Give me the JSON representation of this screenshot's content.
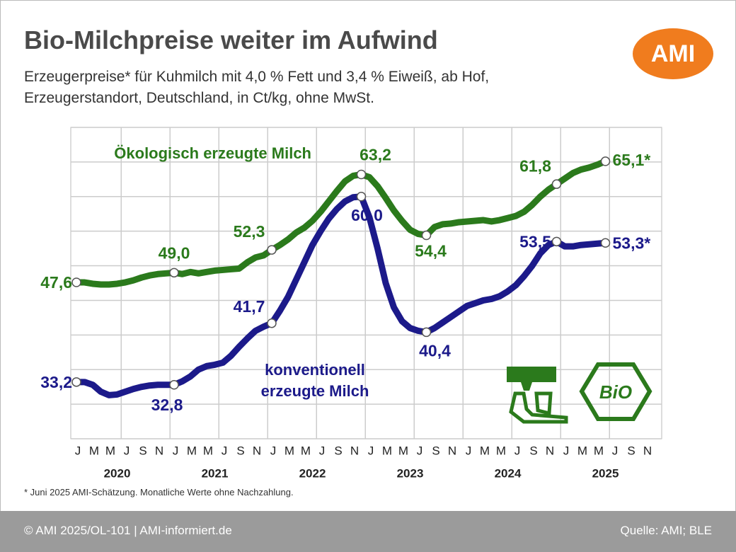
{
  "chart_data": {
    "type": "line",
    "title": "Bio-Milchpreise weiter im Aufwind",
    "subtitle": "Erzeugerpreise* für Kuhmilch mit 4,0 % Fett und 3,4 % Eiweiß, ab Hof, Erzeugerstandort, Deutschland, in Ct/kg, ohne MwSt.",
    "categories": [
      "J",
      null,
      "M",
      null,
      "M",
      null,
      "J",
      null,
      "S",
      null,
      "N",
      null,
      "J",
      null,
      "M",
      null,
      "M",
      null,
      "J",
      null,
      "S",
      null,
      "N",
      null,
      "J",
      null,
      "M",
      null,
      "M",
      null,
      "J",
      null,
      "S",
      null,
      "N",
      null,
      "J",
      null,
      "M",
      null,
      "M",
      null,
      "J",
      null,
      "S",
      null,
      "N",
      null,
      "J",
      null,
      "M",
      null,
      "M",
      null,
      "J",
      null,
      "S",
      null,
      "N",
      null,
      "J",
      null,
      "M",
      null,
      "M",
      null,
      "J",
      null,
      "S",
      null,
      "N",
      null
    ],
    "category_groups": [
      "2020",
      "2021",
      "2022",
      "2023",
      "2024",
      "2025"
    ],
    "ylim": [
      25,
      70
    ],
    "yticks": [
      25,
      30,
      35,
      40,
      45,
      50,
      55,
      60,
      65,
      70
    ],
    "grid": true,
    "series": [
      {
        "name": "Ökologisch erzeugte Milch",
        "color": "#2b7a1c",
        "values": [
          47.6,
          47.6,
          47.4,
          47.3,
          47.3,
          47.4,
          47.6,
          47.9,
          48.3,
          48.6,
          48.8,
          48.9,
          49.0,
          48.8,
          49.1,
          48.9,
          49.1,
          49.3,
          49.4,
          49.5,
          49.6,
          50.5,
          51.2,
          51.5,
          52.3,
          53.0,
          53.8,
          54.8,
          55.5,
          56.5,
          57.8,
          59.3,
          60.8,
          62.2,
          63.0,
          63.2,
          62.8,
          61.5,
          59.8,
          58.0,
          56.5,
          55.2,
          54.6,
          54.4,
          55.6,
          56.0,
          56.1,
          56.3,
          56.4,
          56.5,
          56.6,
          56.4,
          56.6,
          56.9,
          57.2,
          57.8,
          58.8,
          60.0,
          61.0,
          61.8,
          62.6,
          63.4,
          63.9,
          64.2,
          64.6,
          65.1,
          null,
          null,
          null,
          null,
          null,
          null
        ],
        "value_labels": [
          "47,6",
          null,
          null,
          null,
          null,
          null,
          null,
          null,
          null,
          null,
          null,
          null,
          "49,0",
          null,
          null,
          null,
          null,
          null,
          null,
          null,
          null,
          null,
          null,
          null,
          "52,3",
          null,
          null,
          null,
          null,
          null,
          null,
          null,
          null,
          null,
          null,
          "63,2",
          null,
          null,
          null,
          null,
          null,
          null,
          null,
          "54,4",
          null,
          null,
          null,
          null,
          null,
          null,
          null,
          null,
          null,
          null,
          null,
          null,
          null,
          null,
          null,
          "61,8",
          null,
          null,
          null,
          null,
          null,
          "65,1*",
          null,
          null,
          null,
          null,
          null,
          null
        ]
      },
      {
        "name": "konventionell erzeugte Milch",
        "color": "#1c1a8a",
        "values": [
          33.2,
          33.2,
          32.8,
          31.8,
          31.3,
          31.4,
          31.8,
          32.2,
          32.5,
          32.7,
          32.8,
          32.8,
          32.8,
          33.3,
          34.0,
          35.0,
          35.5,
          35.7,
          36.0,
          37.0,
          38.3,
          39.5,
          40.6,
          41.2,
          41.7,
          43.5,
          45.5,
          48.0,
          50.5,
          53.0,
          55.0,
          56.8,
          58.2,
          59.3,
          59.9,
          60.0,
          57.0,
          52.5,
          47.5,
          44.0,
          42.0,
          41.0,
          40.6,
          40.4,
          41.0,
          41.8,
          42.6,
          43.4,
          44.2,
          44.6,
          45.0,
          45.2,
          45.6,
          46.3,
          47.2,
          48.5,
          50.0,
          51.8,
          53.0,
          53.5,
          52.8,
          52.8,
          53.0,
          53.1,
          53.2,
          53.3,
          null,
          null,
          null,
          null,
          null,
          null
        ],
        "value_labels": [
          "33,2",
          null,
          null,
          null,
          null,
          null,
          null,
          null,
          null,
          null,
          null,
          null,
          "32,8",
          null,
          null,
          null,
          null,
          null,
          null,
          null,
          null,
          null,
          null,
          null,
          "41,7",
          null,
          null,
          null,
          null,
          null,
          null,
          null,
          null,
          null,
          null,
          "60,0",
          null,
          null,
          null,
          null,
          null,
          null,
          null,
          "40,4",
          null,
          null,
          null,
          null,
          null,
          null,
          null,
          null,
          null,
          null,
          null,
          null,
          null,
          null,
          null,
          "53,5",
          null,
          null,
          null,
          null,
          null,
          "53,3*",
          null,
          null,
          null,
          null,
          null,
          null
        ]
      }
    ],
    "footnote": "* Juni 2025 AMI-Schätzung. Monatliche Werte ohne Nachzahlung.",
    "logo": "AMI",
    "badge": "BiO",
    "footer_left": "© AMI 2025/OL-101 | AMI-informiert.de",
    "footer_right": "Quelle: AMI; BLE"
  }
}
